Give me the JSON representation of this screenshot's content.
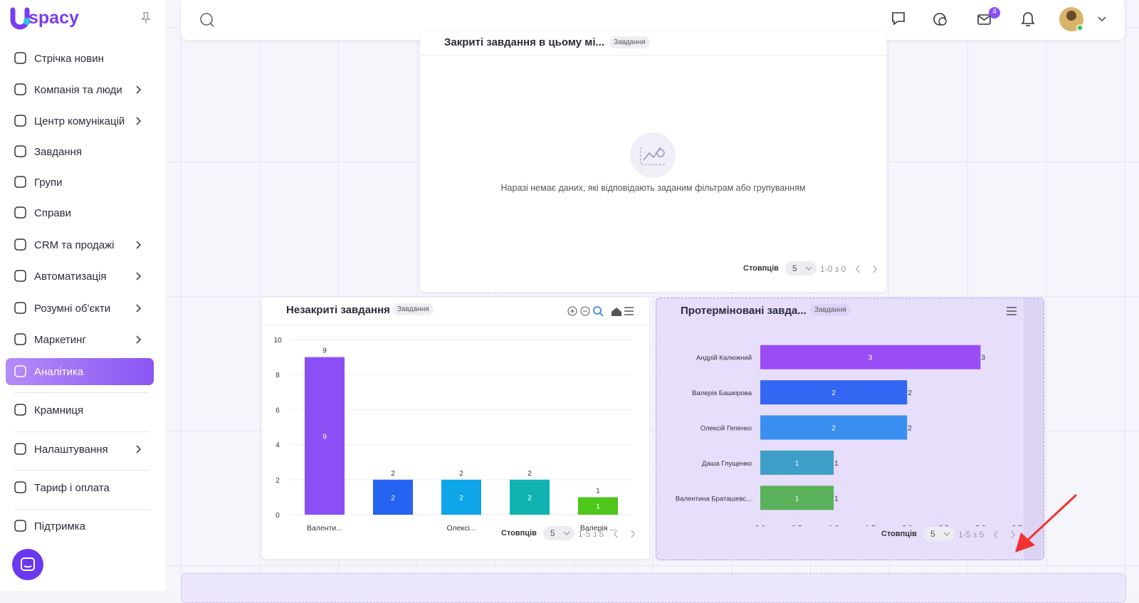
{
  "sidebar": {
    "logo": "spacy",
    "menu": [
      {
        "label": "Стрічка новин",
        "submenu": false
      },
      {
        "label": "Компанія та люди",
        "submenu": true
      },
      {
        "label": "Центр комунікацій",
        "submenu": true
      },
      {
        "label": "Завдання",
        "submenu": false
      },
      {
        "label": "Групи",
        "submenu": false
      },
      {
        "label": "Справи",
        "submenu": false
      },
      {
        "label": "CRM та продажі",
        "submenu": true
      },
      {
        "label": "Автоматизація",
        "submenu": true
      },
      {
        "label": "Розумні об'єкти",
        "submenu": true
      },
      {
        "label": "Маркетинг",
        "submenu": true
      },
      {
        "label": "Аналітика",
        "submenu": false,
        "active": true
      },
      {
        "label": "Крамниця",
        "submenu": false
      },
      {
        "label": "Налаштування",
        "submenu": true
      },
      {
        "label": "Тариф і оплата",
        "submenu": false
      },
      {
        "label": "Підтримка",
        "submenu": false
      }
    ]
  },
  "topbar": {
    "mail_badge": "4"
  },
  "widgets": [
    {
      "title": "Закриті завдання в цьому мі...",
      "tag": "Завдання",
      "empty_message": "Наразі немає даних, які відповідають заданим фільтрам або групуванням",
      "footer": {
        "columns_label": "Стовпців",
        "page_size": "5",
        "range": "1-0 з 0"
      }
    },
    {
      "title": "Незакриті завдання",
      "tag": "Завдання",
      "chart": {
        "type": "bar",
        "categories": [
          "Валенти...",
          null,
          "Олексі...",
          null,
          "Валерія ..."
        ],
        "values": [
          9,
          2,
          2,
          2,
          1
        ],
        "colors": [
          "#8b50f5",
          "#2563f0",
          "#0ea5e9",
          "#10b2b2",
          "#4cc71a"
        ],
        "ylim": [
          0,
          10
        ],
        "yticks": [
          0,
          2,
          4,
          6,
          8,
          10
        ],
        "grid": true
      },
      "footer": {
        "columns_label": "Стовпців",
        "page_size": "5",
        "range": "1-5 з 5"
      }
    },
    {
      "title": "Протерміновані завда...",
      "tag": "Завдання",
      "chart": {
        "type": "hbar",
        "categories": [
          "Андрій Калюжний",
          "Валерія Башкірова",
          "Олексій Гепенко",
          "Даша Глущенко",
          "Валентина Браташевс..."
        ],
        "values": [
          3,
          2,
          2,
          1,
          1
        ],
        "colors": [
          "#9a4cf5",
          "#3366f2",
          "#3a8ff0",
          "#3d9fc8",
          "#5bb05a"
        ],
        "xlim": [
          0,
          3.5
        ],
        "xticks": [
          {
            "value": 0,
            "label": "0.0"
          },
          0.5,
          {
            "value": 1,
            "label": "1.0"
          },
          1.5,
          {
            "value": 2,
            "label": "2.0"
          },
          2.5,
          {
            "value": 3,
            "label": "3.0"
          },
          3.5
        ]
      },
      "footer": {
        "columns_label": "Стовпців",
        "page_size": "5",
        "range": "1-5 з 5"
      }
    }
  ]
}
